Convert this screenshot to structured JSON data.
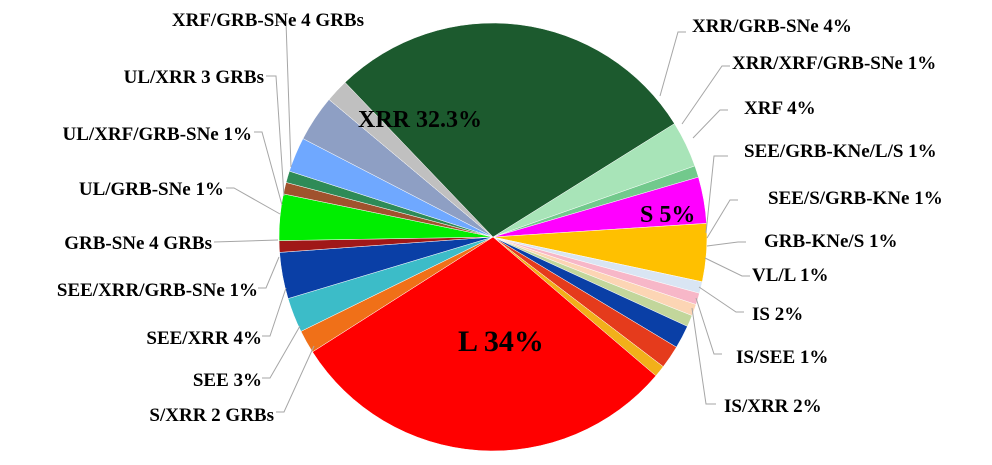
{
  "chart_data": {
    "type": "pie",
    "title": "",
    "legend": "none",
    "slices": [
      {
        "label": "XRR/GRB-SNe 4%",
        "value": 4,
        "color": "#a8e4b8"
      },
      {
        "label": "XRR/XRF/GRB-SNe 1%",
        "value": 1,
        "color": "#72c98c"
      },
      {
        "label": "XRF 4%",
        "value": 4,
        "color": "#ff00ff"
      },
      {
        "label": "S 5%",
        "value": 5,
        "color": "#ffc000"
      },
      {
        "label": "SEE/GRB-KNe/L/S 1%",
        "value": 1,
        "color": "#d9e5f3"
      },
      {
        "label": "SEE/S/GRB-KNe 1%",
        "value": 1,
        "color": "#f7b7c8"
      },
      {
        "label": "GRB-KNe/S 1%",
        "value": 1,
        "color": "#fcd5b4"
      },
      {
        "label": "VL/L 1%",
        "value": 1,
        "color": "#c2d69b"
      },
      {
        "label": "",
        "value": 2,
        "color": "#0a3fa6"
      },
      {
        "label": "IS 2%",
        "value": 2,
        "color": "#e53b1c"
      },
      {
        "label": "IS/SEE 1%",
        "value": 1,
        "color": "#f2b01a"
      },
      {
        "label": "L 34%",
        "value": 34,
        "color": "#ff0000"
      },
      {
        "label": "IS/XRR 2%",
        "value": 2,
        "color": "#f07018"
      },
      {
        "label": "SEE 3%",
        "value": 3,
        "color": "#3cbcc8"
      },
      {
        "label": "SEE/XRR 4%",
        "value": 4,
        "color": "#0a3fa6"
      },
      {
        "label": "SEE/XRR/GRB-SNe 1%",
        "value": 1,
        "color": "#a01818"
      },
      {
        "label": "GRB-SNe 4 GRBs",
        "value": 4,
        "color": "#00ee00"
      },
      {
        "label": "UL/GRB-SNe 1%",
        "value": 1,
        "color": "#a0522d"
      },
      {
        "label": "UL/XRF/GRB-SNe 1%",
        "value": 1,
        "color": "#2e8b57"
      },
      {
        "label": "UL/XRR 3 GRBs",
        "value": 3,
        "color": "#6fa8ff"
      },
      {
        "label": "XRF/GRB-SNe 4 GRBs",
        "value": 4,
        "color": "#8e9fc4"
      },
      {
        "label": "S/XRR 2 GRBs",
        "value": 2,
        "color": "#c0c0c0"
      },
      {
        "label": "XRR 32.3%",
        "value": 32.3,
        "color": "#1c5a2e"
      }
    ]
  },
  "labels": {
    "xrr_grbsne": "XRR/GRB-SNe 4%",
    "xrr_xrf_grbsne": "XRR/XRF/GRB-SNe 1%",
    "xrf": "XRF 4%",
    "see_grbkne_l_s": "SEE/GRB-KNe/L/S 1%",
    "see_s_grbkne": "SEE/S/GRB-KNe 1%",
    "grbkne_s": "GRB-KNe/S 1%",
    "vl_l": "VL/L 1%",
    "is": "IS 2%",
    "is_see": "IS/SEE 1%",
    "is_xrr": "IS/XRR 2%",
    "s_xrr": "S/XRR 2 GRBs",
    "see": "SEE 3%",
    "see_xrr": "SEE/XRR 4%",
    "see_xrr_grbsne": "SEE/XRR/GRB-SNe 1%",
    "grbsne": "GRB-SNe 4 GRBs",
    "ul_grbsne": "UL/GRB-SNe 1%",
    "ul_xrf_grbsne": "UL/XRF/GRB-SNe 1%",
    "ul_xrr": "UL/XRR 3 GRBs",
    "xrf_grbsne": "XRF/GRB-SNe 4 GRBs",
    "xrr_in": "XRR 32.3%",
    "s_in": "S 5%",
    "l_in": "L 34%"
  }
}
